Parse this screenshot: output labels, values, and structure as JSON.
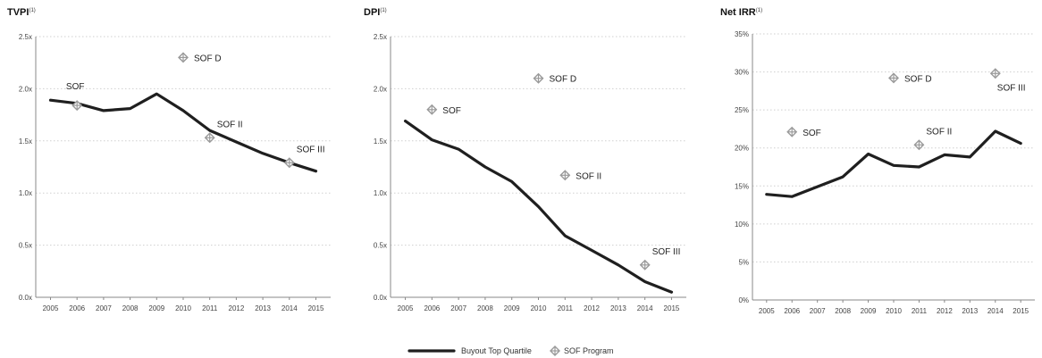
{
  "colors": {
    "quartile_line": "#1f1f1f",
    "program_marker": "#9a9a9a",
    "grid": "#cfcfcf"
  },
  "legend": {
    "quartile_label": "Buyout Top Quartile",
    "program_label": "SOF Program",
    "program_icon": "diamond-cross-icon"
  },
  "chart_data": [
    {
      "type": "line",
      "title": "TVPI",
      "title_sup": "(1)",
      "x": [
        2005,
        2006,
        2007,
        2008,
        2009,
        2010,
        2011,
        2012,
        2013,
        2014,
        2015
      ],
      "ylim": [
        0,
        2.5
      ],
      "yticks": [
        0.0,
        0.5,
        1.0,
        1.5,
        2.0,
        2.5
      ],
      "ytick_labels": [
        "0.0x",
        "0.5x",
        "1.0x",
        "1.5x",
        "2.0x",
        "2.5x"
      ],
      "grid": true,
      "series": [
        {
          "name": "Buyout Top Quartile",
          "values": [
            1.89,
            1.86,
            1.79,
            1.81,
            1.95,
            1.79,
            1.6,
            1.49,
            1.38,
            1.29,
            1.21
          ]
        }
      ],
      "points": [
        {
          "label": "SOF",
          "x": 2006,
          "y": 1.84,
          "label_pos": "above-left"
        },
        {
          "label": "SOF D",
          "x": 2010,
          "y": 2.3,
          "label_pos": "right"
        },
        {
          "label": "SOF II",
          "x": 2011,
          "y": 1.53,
          "label_pos": "above-right"
        },
        {
          "label": "SOF III",
          "x": 2014,
          "y": 1.29,
          "label_pos": "above-right"
        }
      ]
    },
    {
      "type": "line",
      "title": "DPI",
      "title_sup": "(1)",
      "x": [
        2005,
        2006,
        2007,
        2008,
        2009,
        2010,
        2011,
        2012,
        2013,
        2014,
        2015
      ],
      "ylim": [
        0,
        2.5
      ],
      "yticks": [
        0.0,
        0.5,
        1.0,
        1.5,
        2.0,
        2.5
      ],
      "ytick_labels": [
        "0.0x",
        "0.5x",
        "1.0x",
        "1.5x",
        "2.0x",
        "2.5x"
      ],
      "grid": true,
      "series": [
        {
          "name": "Buyout Top Quartile",
          "values": [
            1.69,
            1.51,
            1.42,
            1.25,
            1.11,
            0.87,
            0.59,
            0.45,
            0.31,
            0.15,
            0.05
          ]
        }
      ],
      "points": [
        {
          "label": "SOF",
          "x": 2006,
          "y": 1.8,
          "label_pos": "right"
        },
        {
          "label": "SOF D",
          "x": 2010,
          "y": 2.1,
          "label_pos": "right"
        },
        {
          "label": "SOF II",
          "x": 2011,
          "y": 1.17,
          "label_pos": "right"
        },
        {
          "label": "SOF III",
          "x": 2014,
          "y": 0.31,
          "label_pos": "above-right"
        }
      ]
    },
    {
      "type": "line",
      "title": "Net IRR",
      "title_sup": "(1)",
      "x": [
        2005,
        2006,
        2007,
        2008,
        2009,
        2010,
        2011,
        2012,
        2013,
        2014,
        2015
      ],
      "ylim": [
        0,
        35
      ],
      "yticks": [
        0,
        5,
        10,
        15,
        20,
        25,
        30,
        35
      ],
      "ytick_labels": [
        "0%",
        "5%",
        "10%",
        "15%",
        "20%",
        "25%",
        "30%",
        "35%"
      ],
      "grid": true,
      "series": [
        {
          "name": "Buyout Top Quartile",
          "values": [
            13.9,
            13.6,
            14.9,
            16.2,
            19.2,
            17.7,
            17.5,
            19.1,
            18.8,
            22.2,
            20.6
          ]
        }
      ],
      "points": [
        {
          "label": "SOF",
          "x": 2006,
          "y": 22.1,
          "label_pos": "right"
        },
        {
          "label": "SOF D",
          "x": 2010,
          "y": 29.2,
          "label_pos": "right"
        },
        {
          "label": "SOF II",
          "x": 2011,
          "y": 20.4,
          "label_pos": "above-right"
        },
        {
          "label": "SOF III",
          "x": 2014,
          "y": 29.8,
          "label_pos": "below-right"
        }
      ]
    }
  ]
}
